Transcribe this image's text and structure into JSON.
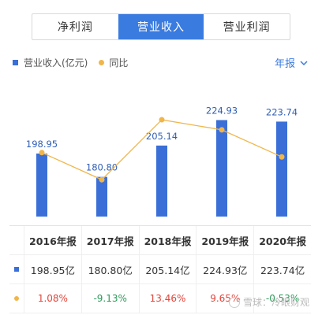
{
  "tabs": [
    {
      "label": "净利润",
      "active": false
    },
    {
      "label": "营业收入",
      "active": true
    },
    {
      "label": "营业利润",
      "active": false
    }
  ],
  "legend": {
    "bar": "营业收入(亿元)",
    "line": "同比"
  },
  "period_selector": "年报",
  "colors": {
    "bar": "#3a6fd8",
    "line": "#f0b64a",
    "accent": "#3a7be0",
    "positive": "#e0453a",
    "negative": "#2e9a5a"
  },
  "chart_data": {
    "type": "bar",
    "categories": [
      "2016年报",
      "2017年报",
      "2018年报",
      "2019年报",
      "2020年报"
    ],
    "series": [
      {
        "name": "营业收入(亿元)",
        "values": [
          198.95,
          180.8,
          205.14,
          224.93,
          223.74
        ],
        "labels": [
          "198.95",
          "180.80",
          "205.14",
          "224.93",
          "223.74"
        ]
      },
      {
        "name": "同比",
        "type": "line",
        "values": [
          1.08,
          -9.13,
          13.46,
          9.65,
          -0.53
        ]
      }
    ]
  },
  "table": {
    "headers": [
      "2016年报",
      "2017年报",
      "2018年报",
      "2019年报",
      "2020年报"
    ],
    "revenue_row": [
      "198.95亿",
      "180.80亿",
      "205.14亿",
      "224.93亿",
      "223.74亿"
    ],
    "yoy_row": [
      "1.08%",
      "-9.13%",
      "13.46%",
      "9.65%",
      "-0.53%"
    ]
  },
  "watermark": "雪球：冷眼财观"
}
